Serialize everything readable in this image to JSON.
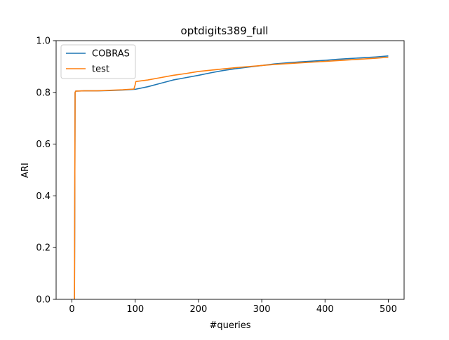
{
  "chart_data": {
    "type": "line",
    "title": "optdigits389_full",
    "xlabel": "#queries",
    "ylabel": "ARI",
    "xlim": [
      -25,
      525
    ],
    "ylim": [
      0.0,
      1.0
    ],
    "xticks": [
      0,
      100,
      200,
      300,
      400,
      500
    ],
    "yticks": [
      0.0,
      0.2,
      0.4,
      0.6,
      0.8,
      1.0
    ],
    "xtick_labels": [
      "0",
      "100",
      "200",
      "300",
      "400",
      "500"
    ],
    "ytick_labels": [
      "0.0",
      "0.2",
      "0.4",
      "0.6",
      "0.8",
      "1.0"
    ],
    "grid": false,
    "legend_position": "top-left",
    "series": [
      {
        "name": "COBRAS",
        "color": "#1f77b4",
        "x": [
          3,
          4,
          5,
          6,
          20,
          40,
          60,
          80,
          100,
          120,
          140,
          160,
          180,
          200,
          220,
          240,
          260,
          280,
          300,
          320,
          340,
          360,
          380,
          400,
          420,
          440,
          460,
          480,
          500
        ],
        "y": [
          0.0,
          0.0,
          0.8,
          0.805,
          0.806,
          0.806,
          0.807,
          0.809,
          0.812,
          0.822,
          0.835,
          0.848,
          0.857,
          0.866,
          0.876,
          0.885,
          0.892,
          0.898,
          0.904,
          0.91,
          0.914,
          0.918,
          0.921,
          0.924,
          0.928,
          0.931,
          0.934,
          0.937,
          0.941
        ]
      },
      {
        "name": "test",
        "color": "#ff7f0e",
        "x": [
          3,
          4,
          5,
          6,
          20,
          40,
          60,
          80,
          98,
          100,
          101,
          120,
          140,
          160,
          180,
          200,
          220,
          240,
          260,
          280,
          300,
          320,
          340,
          360,
          380,
          400,
          420,
          440,
          460,
          480,
          500
        ],
        "y": [
          0.0,
          0.0,
          0.8,
          0.805,
          0.806,
          0.806,
          0.808,
          0.81,
          0.813,
          0.83,
          0.842,
          0.848,
          0.857,
          0.866,
          0.873,
          0.881,
          0.886,
          0.891,
          0.896,
          0.9,
          0.904,
          0.908,
          0.911,
          0.914,
          0.917,
          0.92,
          0.923,
          0.926,
          0.929,
          0.932,
          0.936
        ]
      }
    ]
  }
}
